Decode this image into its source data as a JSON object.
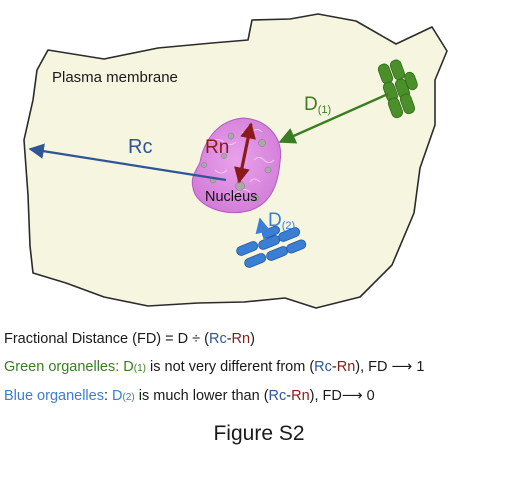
{
  "diagram": {
    "membrane_label": "Plasma membrane",
    "nucleus_label": "Nucleus",
    "rc_label": "Rc",
    "rn_label": "Rn",
    "d1_label": "D",
    "d1_sub": "(1)",
    "d2_label": "D",
    "d2_sub": "(2)"
  },
  "caption": {
    "line1": {
      "prefix": "Fractional Distance (FD) = D ÷ (",
      "rc": "Rc",
      "dash": "-",
      "rn": "Rn",
      "suffix": ")"
    },
    "line2": {
      "lead": "Green organelles: ",
      "d": "D",
      "sub": "(1)",
      "mid": " is not very different from (",
      "rc": "Rc",
      "dash": "-",
      "rn": "Rn",
      "tail": "), FD ⟶ 1"
    },
    "line3": {
      "lead": "Blue organelles",
      "colon": ": ",
      "d": "D",
      "sub": "(2)",
      "mid": " is much lower than (",
      "rc": "Rc",
      "dash": "-",
      "rn": "Rn",
      "tail": "), FD⟶ 0"
    }
  },
  "figure_title": "Figure S2",
  "colors": {
    "cell_fill": "#f6f5df",
    "cell_outline": "#2b2b2b",
    "nucleus": "#dd86dd",
    "rc_arrow": "#2f5597",
    "rn_arrow": "#8b1a1a",
    "green_organelle": "#4a8f2a",
    "blue_organelle": "#3a7ed6"
  }
}
